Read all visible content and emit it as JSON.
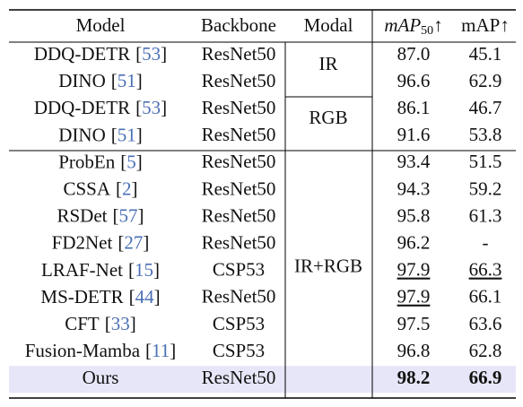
{
  "table": {
    "header": [
      "Model",
      "Backbone",
      "Modal",
      {
        "main": "mAP",
        "sub": "50",
        "arrow": "↑"
      },
      "mAP↑"
    ],
    "modal_groups": [
      {
        "label": "IR",
        "first_row": 0,
        "last_row": 1
      },
      {
        "label": "RGB",
        "first_row": 2,
        "last_row": 3
      },
      {
        "label": "IR+RGB",
        "first_row": 4,
        "last_row": 12
      }
    ],
    "rows": [
      {
        "model": "DDQ-DETR",
        "cite": "[53]",
        "backbone": "ResNet50",
        "map50": "87.0",
        "map": "45.1"
      },
      {
        "model": "DINO",
        "cite": "[51]",
        "backbone": "ResNet50",
        "map50": "96.6",
        "map": "62.9"
      },
      {
        "model": "DDQ-DETR",
        "cite": "[53]",
        "backbone": "ResNet50",
        "map50": "86.1",
        "map": "46.7"
      },
      {
        "model": "DINO",
        "cite": "[51]",
        "backbone": "ResNet50",
        "map50": "91.6",
        "map": "53.8"
      },
      {
        "model": "ProbEn",
        "cite": "[5]",
        "backbone": "ResNet50",
        "map50": "93.4",
        "map": "51.5"
      },
      {
        "model": "CSSA",
        "cite": "[2]",
        "backbone": "ResNet50",
        "map50": "94.3",
        "map": "59.2"
      },
      {
        "model": "RSDet",
        "cite": "[57]",
        "backbone": "ResNet50",
        "map50": "95.8",
        "map": "61.3"
      },
      {
        "model": "FD2Net",
        "cite": "[27]",
        "backbone": "ResNet50",
        "map50": "96.2",
        "map": "-"
      },
      {
        "model": "LRAF-Net",
        "cite": "[15]",
        "backbone": "CSP53",
        "map50": "97.9",
        "map": "66.3"
      },
      {
        "model": "MS-DETR",
        "cite": "[44]",
        "backbone": "ResNet50",
        "map50": "97.9",
        "map": "66.1"
      },
      {
        "model": "CFT",
        "cite": "[33]",
        "backbone": "CSP53",
        "map50": "97.5",
        "map": "63.6"
      },
      {
        "model": "Fusion-Mamba",
        "cite": "[11]",
        "backbone": "CSP53",
        "map50": "96.8",
        "map": "62.8"
      },
      {
        "model": "Ours",
        "backbone": "ResNet50",
        "map50": "98.2",
        "map": "66.9"
      }
    ],
    "underlined": [
      {
        "row": 8,
        "col": "map50"
      },
      {
        "row": 8,
        "col": "map"
      },
      {
        "row": 9,
        "col": "map50"
      }
    ],
    "bold_row": 12,
    "highlight_row": 12,
    "highlight_color": "#e6e6f8"
  }
}
